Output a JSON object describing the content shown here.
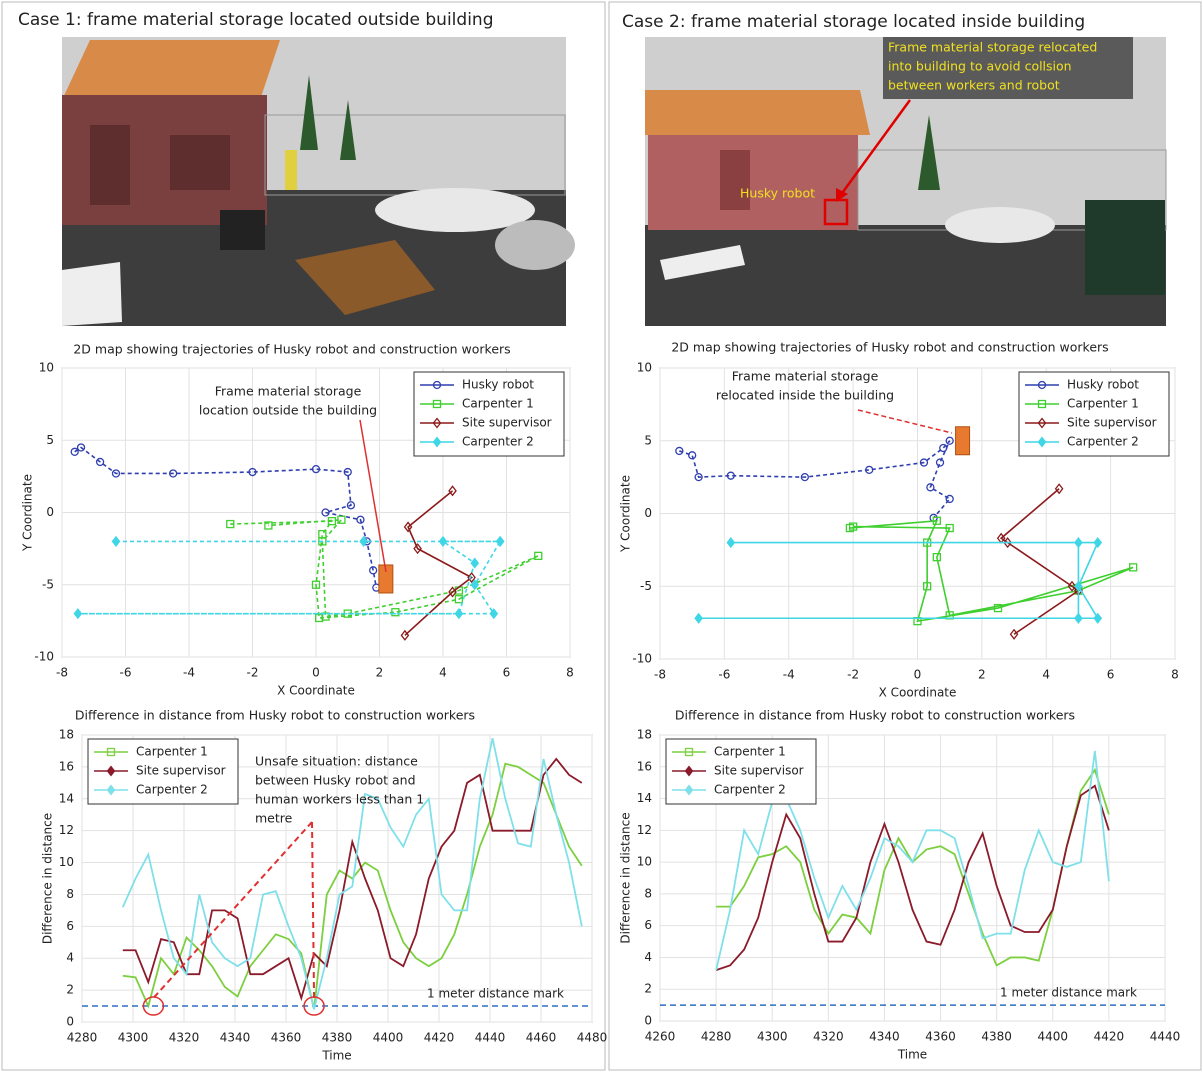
{
  "panels": [
    {
      "title": "Case 1: frame material storage located outside building"
    },
    {
      "title": "Case 2: frame material storage located inside building",
      "scene_labels": {
        "callout": [
          "Frame material storage relocated",
          "into building to avoid collsion",
          "between workers and robot"
        ],
        "robot": "Husky robot"
      }
    }
  ],
  "chart_data": [
    {
      "type": "line",
      "title": "2D map showing trajectories of Husky robot and construction workers",
      "xlabel": "X Coordinate",
      "ylabel": "Y Coordinate",
      "xlim": [
        -8,
        8
      ],
      "xticks": [
        -8,
        -6,
        -4,
        -2,
        0,
        2,
        4,
        6,
        8
      ],
      "ylim": [
        -10,
        10
      ],
      "yticks": [
        -10,
        -5,
        0,
        5,
        10
      ],
      "grid": true,
      "legend": "upper right",
      "show_markers": true,
      "annotation": [
        "Frame material storage",
        "location outside the building"
      ],
      "storage_location": [
        2.2,
        -4.6
      ],
      "series": [
        {
          "name": "Husky robot",
          "color": "#2f3fb0",
          "marker": "o",
          "dashed": true,
          "x": [
            -7.6,
            -7.4,
            -6.8,
            -6.3,
            -4.5,
            -2,
            0,
            1,
            1.1,
            0.3,
            1.4,
            1.6,
            1.8,
            1.9
          ],
          "values": [
            4.2,
            4.5,
            3.5,
            2.7,
            2.7,
            2.8,
            3,
            2.8,
            0.5,
            0,
            -0.5,
            -2,
            -4,
            -5.2
          ]
        },
        {
          "name": "Carpenter 1",
          "color": "#3fcf2f",
          "marker": "s",
          "dashed": true,
          "x": [
            -2.7,
            0.5,
            0.2,
            0,
            0.1,
            2.5,
            4.5,
            7,
            4.5,
            1,
            0.3,
            0.2,
            0.8,
            -1.5
          ],
          "values": [
            -0.8,
            -0.6,
            -1.5,
            -5,
            -7.3,
            -6.9,
            -6,
            -3,
            -5.4,
            -7,
            -7.2,
            -2,
            -0.5,
            -0.9
          ]
        },
        {
          "name": "Site supervisor",
          "color": "#8b1a1a",
          "marker": "d",
          "dashed": false,
          "x": [
            4.3,
            2.9,
            3.2,
            4.9,
            4.3,
            2.8
          ],
          "values": [
            1.5,
            -1,
            -2.5,
            -4.5,
            -5.5,
            -8.5
          ]
        },
        {
          "name": "Carpenter 2",
          "color": "#3fd6e6",
          "marker": "d",
          "dashed": true,
          "x": [
            -6.3,
            1.5,
            5.8,
            5,
            5.6,
            -7.5,
            4.5,
            5,
            4,
            5.8
          ],
          "values": [
            -2,
            -2,
            -2,
            -5,
            -7,
            -7,
            -7,
            -3.5,
            -2,
            -2
          ]
        }
      ]
    },
    {
      "type": "line",
      "title": "2D map showing trajectories of Husky robot and construction workers",
      "xlabel": "X Coordinate",
      "ylabel": "Y Coordinate",
      "xlim": [
        -8,
        8
      ],
      "xticks": [
        -8,
        -6,
        -4,
        -2,
        0,
        2,
        4,
        6,
        8
      ],
      "ylim": [
        -10,
        10
      ],
      "yticks": [
        -10,
        -5,
        0,
        5,
        10
      ],
      "grid": true,
      "legend": "upper right",
      "show_markers": true,
      "annotation": [
        "Frame material storage",
        "relocated inside the building"
      ],
      "storage_location": [
        1.4,
        5
      ],
      "series": [
        {
          "name": "Husky robot",
          "color": "#2f3fb0",
          "marker": "o",
          "dashed": true,
          "x": [
            -7.4,
            -7,
            -6.8,
            -5.8,
            -3.5,
            -1.5,
            0.2,
            0.8,
            1,
            0.7,
            0.4,
            1,
            0.5
          ],
          "values": [
            4.3,
            4,
            2.5,
            2.6,
            2.5,
            3,
            3.5,
            4.5,
            5,
            3.5,
            1.8,
            1,
            -0.3
          ]
        },
        {
          "name": "Carpenter 1",
          "color": "#3fcf2f",
          "marker": "s",
          "dashed": false,
          "x": [
            -2.1,
            0.6,
            0.3,
            0.3,
            0,
            2.5,
            6.7,
            5,
            1,
            0.6,
            1,
            -2
          ],
          "values": [
            -1,
            -0.5,
            -2,
            -5,
            -7.4,
            -6.5,
            -3.7,
            -5.3,
            -7,
            -3,
            -1,
            -0.9
          ]
        },
        {
          "name": "Site supervisor",
          "color": "#8b1a1a",
          "marker": "d",
          "dashed": false,
          "x": [
            4.4,
            2.6,
            2.8,
            4.8,
            5,
            3
          ],
          "values": [
            1.7,
            -1.7,
            -2,
            -5,
            -5.3,
            -8.3
          ]
        },
        {
          "name": "Carpenter 2",
          "color": "#3fd6e6",
          "marker": "d",
          "dashed": false,
          "x": [
            -5.8,
            5.6,
            5,
            5.6,
            -6.8,
            5,
            5
          ],
          "values": [
            -2,
            -2,
            -5,
            -7.2,
            -7.2,
            -7.2,
            -2
          ]
        }
      ]
    },
    {
      "type": "line",
      "title": "Difference in distance from Husky robot to construction workers",
      "xlabel": "Time",
      "ylabel": "Difference in distance",
      "xlim": [
        4280,
        4480
      ],
      "xticks": [
        4280,
        4300,
        4320,
        4340,
        4360,
        4380,
        4400,
        4420,
        4440,
        4460,
        4480
      ],
      "ylim": [
        0,
        18
      ],
      "yticks": [
        0,
        2,
        4,
        6,
        8,
        10,
        12,
        14,
        16,
        18
      ],
      "grid": true,
      "legend": "upper left",
      "show_markers": false,
      "annotation": [
        "Unsafe situation: distance",
        "between Husky robot and",
        "human workers less than 1",
        "metre"
      ],
      "unsafe_points": [
        [
          4308,
          1
        ],
        [
          4371,
          1
        ]
      ],
      "reference": {
        "value": 1,
        "label": "1 meter distance mark",
        "color": "#2f6fbf"
      },
      "x": [
        4296,
        4301,
        4306,
        4311,
        4316,
        4321,
        4326,
        4331,
        4336,
        4341,
        4346,
        4351,
        4356,
        4361,
        4366,
        4371,
        4376,
        4381,
        4386,
        4391,
        4396,
        4401,
        4406,
        4411,
        4416,
        4421,
        4426,
        4431,
        4436,
        4441,
        4446,
        4451,
        4456,
        4461,
        4466,
        4471,
        4476
      ],
      "series": [
        {
          "name": "Carpenter 1",
          "color": "#7ccf3f",
          "marker": "s",
          "values": [
            2.9,
            2.8,
            1.0,
            4.0,
            3.0,
            5.3,
            4.5,
            3.5,
            2.2,
            1.6,
            3.5,
            4.5,
            5.5,
            5.2,
            4.3,
            0.8,
            8,
            9.5,
            9,
            10,
            9.5,
            7,
            5,
            4,
            3.5,
            4,
            5.5,
            8,
            11,
            13,
            16.2,
            16,
            15.5,
            15,
            13,
            11,
            9.8
          ]
        },
        {
          "name": "Site supervisor",
          "color": "#8b1a2a",
          "marker": "d",
          "values": [
            4.5,
            4.5,
            2.5,
            5.2,
            5,
            3,
            3,
            7,
            7,
            6.5,
            3,
            3,
            3.5,
            4,
            1.5,
            4.3,
            3.5,
            7,
            11.3,
            9,
            7,
            4,
            3.5,
            5.5,
            9,
            11,
            12,
            15,
            15.5,
            12,
            12,
            12,
            12,
            15.5,
            16.5,
            15.5,
            15
          ]
        },
        {
          "name": "Carpenter 2",
          "color": "#7fe0ea",
          "marker": "d",
          "values": [
            7.2,
            9,
            10.5,
            7,
            4,
            3,
            8,
            5,
            4,
            3.5,
            4,
            8,
            8.2,
            6,
            4,
            0.8,
            4,
            8,
            8.5,
            14.3,
            14,
            12.2,
            11,
            13,
            14,
            8,
            7,
            7,
            14,
            17.8,
            14,
            11.2,
            11,
            16.5,
            13,
            10,
            6
          ]
        }
      ]
    },
    {
      "type": "line",
      "title": "Difference in distance from Husky robot to construction workers",
      "xlabel": "Time",
      "ylabel": "Difference in distance",
      "xlim": [
        4260,
        4440
      ],
      "xticks": [
        4260,
        4280,
        4300,
        4320,
        4340,
        4360,
        4380,
        4400,
        4420,
        4440
      ],
      "ylim": [
        0,
        18
      ],
      "yticks": [
        0,
        2,
        4,
        6,
        8,
        10,
        12,
        14,
        16,
        18
      ],
      "grid": true,
      "legend": "upper left",
      "show_markers": false,
      "reference": {
        "value": 1,
        "label": "1 meter distance mark",
        "color": "#2f6fbf"
      },
      "x": [
        4280,
        4285,
        4290,
        4295,
        4300,
        4305,
        4310,
        4315,
        4320,
        4325,
        4330,
        4335,
        4340,
        4345,
        4350,
        4355,
        4360,
        4365,
        4370,
        4375,
        4380,
        4385,
        4390,
        4395,
        4400,
        4405,
        4410,
        4415,
        4420
      ],
      "series": [
        {
          "name": "Carpenter 1",
          "color": "#7ccf3f",
          "marker": "s",
          "values": [
            7.2,
            7.2,
            8.5,
            10.3,
            10.5,
            11,
            10,
            7,
            5.5,
            6.7,
            6.5,
            5.5,
            9.5,
            11.5,
            10,
            10.8,
            11,
            10.5,
            8,
            5.5,
            3.5,
            4,
            4,
            3.8,
            7,
            11,
            14.5,
            15.8,
            13
          ]
        },
        {
          "name": "Site supervisor",
          "color": "#8b1a2a",
          "marker": "d",
          "values": [
            3.2,
            3.5,
            4.5,
            6.5,
            10,
            13,
            11.5,
            8,
            5,
            5,
            6.5,
            10,
            12.4,
            10,
            7,
            5,
            4.8,
            7,
            10,
            11.8,
            8.5,
            6,
            5.6,
            5.6,
            7,
            11,
            14.2,
            14.8,
            12
          ]
        },
        {
          "name": "Carpenter 2",
          "color": "#7fe0ea",
          "marker": "d",
          "values": [
            3.2,
            7,
            12,
            10.5,
            13.8,
            14,
            12,
            9,
            6.5,
            8.5,
            7,
            9,
            11.5,
            11,
            10,
            12,
            12,
            11.5,
            8.5,
            5.2,
            5.5,
            5.5,
            9.5,
            12,
            10,
            9.7,
            10,
            17,
            8.8
          ]
        }
      ]
    }
  ]
}
